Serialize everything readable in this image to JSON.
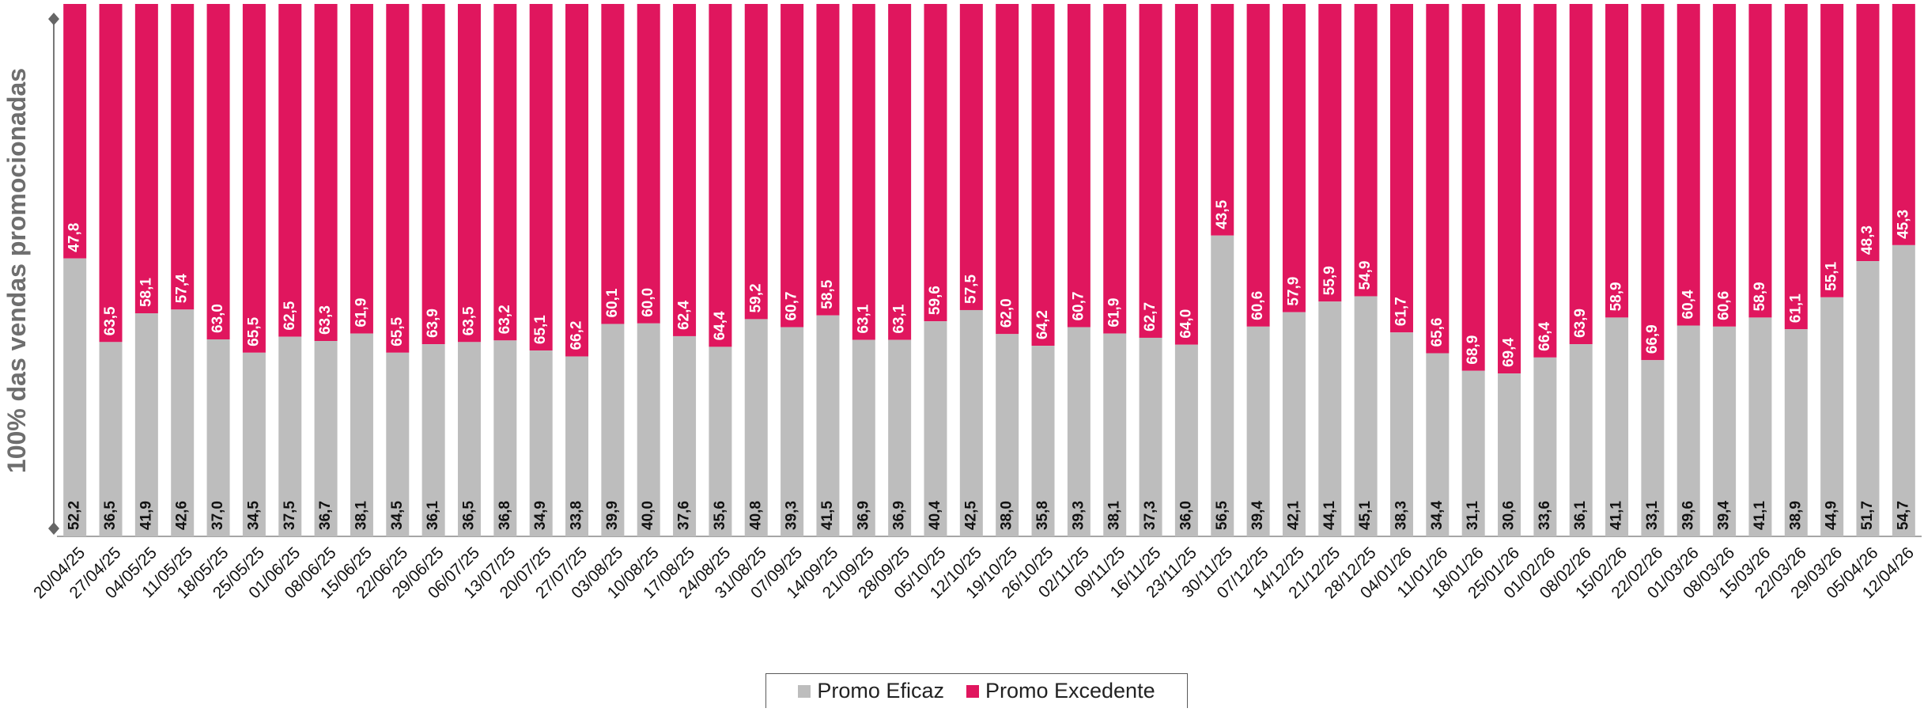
{
  "chart_data": {
    "type": "bar",
    "stacked": true,
    "percent_stacked": true,
    "ylabel": "100% das vendas promocionadas",
    "ylim": [
      0,
      100
    ],
    "grid": false,
    "legend_position": "bottom",
    "categories": [
      "20/04/25",
      "27/04/25",
      "04/05/25",
      "11/05/25",
      "18/05/25",
      "25/05/25",
      "01/06/25",
      "08/06/25",
      "15/06/25",
      "22/06/25",
      "29/06/25",
      "06/07/25",
      "13/07/25",
      "20/07/25",
      "27/07/25",
      "03/08/25",
      "10/08/25",
      "17/08/25",
      "24/08/25",
      "31/08/25",
      "07/09/25",
      "14/09/25",
      "21/09/25",
      "28/09/25",
      "05/10/25",
      "12/10/25",
      "19/10/25",
      "26/10/25",
      "02/11/25",
      "09/11/25",
      "16/11/25",
      "23/11/25",
      "30/11/25",
      "07/12/25",
      "14/12/25",
      "21/12/25",
      "28/12/25",
      "04/01/26",
      "11/01/26",
      "18/01/26",
      "25/01/26",
      "01/02/26",
      "08/02/26",
      "15/02/26",
      "22/02/26",
      "01/03/26",
      "08/03/26",
      "15/03/26",
      "22/03/26",
      "29/03/26",
      "05/04/26",
      "12/04/26"
    ],
    "series": [
      {
        "name": "Promo Eficaz",
        "color": "#bdbdbd",
        "values": [
          52.2,
          36.5,
          41.9,
          42.6,
          37.0,
          34.5,
          37.5,
          36.7,
          38.1,
          34.5,
          36.1,
          36.5,
          36.8,
          34.9,
          33.8,
          39.9,
          40.0,
          37.6,
          35.6,
          40.8,
          39.3,
          41.5,
          36.9,
          36.9,
          40.4,
          42.5,
          38.0,
          35.8,
          39.3,
          38.1,
          37.3,
          36.0,
          56.5,
          39.4,
          42.1,
          44.1,
          45.1,
          38.3,
          34.4,
          31.1,
          30.6,
          33.6,
          36.1,
          41.1,
          33.1,
          39.6,
          39.4,
          41.1,
          38.9,
          44.9,
          51.7,
          54.7
        ],
        "labels": [
          "52,2",
          "36,5",
          "41,9",
          "42,6",
          "37,0",
          "34,5",
          "37,5",
          "36,7",
          "38,1",
          "34,5",
          "36,1",
          "36,5",
          "36,8",
          "34,9",
          "33,8",
          "39,9",
          "40,0",
          "37,6",
          "35,6",
          "40,8",
          "39,3",
          "41,5",
          "36,9",
          "36,9",
          "40,4",
          "42,5",
          "38,0",
          "35,8",
          "39,3",
          "38,1",
          "37,3",
          "36,0",
          "56,5",
          "39,4",
          "42,1",
          "44,1",
          "45,1",
          "38,3",
          "34,4",
          "31,1",
          "30,6",
          "33,6",
          "36,1",
          "41,1",
          "33,1",
          "39,6",
          "39,4",
          "41,1",
          "38,9",
          "44,9",
          "51,7",
          "54,7"
        ]
      },
      {
        "name": "Promo Excedente",
        "color": "#e0165e",
        "values": [
          47.8,
          63.5,
          58.1,
          57.4,
          63.0,
          65.5,
          62.5,
          63.3,
          61.9,
          65.5,
          63.9,
          63.5,
          63.2,
          65.1,
          66.2,
          60.1,
          60.0,
          62.4,
          64.4,
          59.2,
          60.7,
          58.5,
          63.1,
          63.1,
          59.6,
          57.5,
          62.0,
          64.2,
          60.7,
          61.9,
          62.7,
          64.0,
          43.5,
          60.6,
          57.9,
          55.9,
          54.9,
          61.7,
          65.6,
          68.9,
          69.4,
          66.4,
          63.9,
          58.9,
          66.9,
          60.4,
          60.6,
          58.9,
          61.1,
          55.1,
          48.3,
          45.3
        ],
        "labels": [
          "47,8",
          "63,5",
          "58,1",
          "57,4",
          "63,0",
          "65,5",
          "62,5",
          "63,3",
          "61,9",
          "65,5",
          "63,9",
          "63,5",
          "63,2",
          "65,1",
          "66,2",
          "60,1",
          "60,0",
          "62,4",
          "64,4",
          "59,2",
          "60,7",
          "58,5",
          "63,1",
          "63,1",
          "59,6",
          "57,5",
          "62,0",
          "64,2",
          "60,7",
          "61,9",
          "62,7",
          "64,0",
          "43,5",
          "60,6",
          "57,9",
          "55,9",
          "54,9",
          "61,7",
          "65,6",
          "68,9",
          "69,4",
          "66,4",
          "63,9",
          "58,9",
          "66,9",
          "60,4",
          "60,6",
          "58,9",
          "61,1",
          "55,1",
          "48,3",
          "45,3"
        ]
      }
    ]
  }
}
